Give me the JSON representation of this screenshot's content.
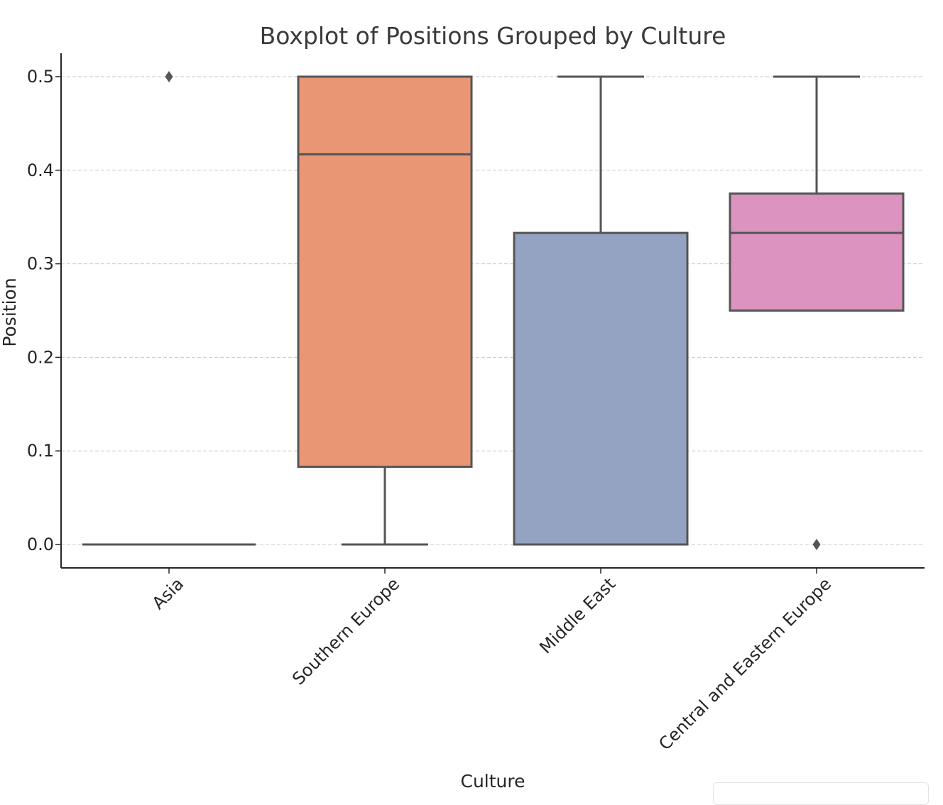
{
  "chart_data": {
    "type": "boxplot",
    "title": "Boxplot of Positions Grouped by Culture",
    "xlabel": "Culture",
    "ylabel": "Position",
    "ylim": [
      -0.025,
      0.525
    ],
    "yticks": [
      "0.0",
      "0.1",
      "0.2",
      "0.3",
      "0.4",
      "0.5"
    ],
    "ytick_values": [
      0.0,
      0.1,
      0.2,
      0.3,
      0.4,
      0.5
    ],
    "grid": "horizontal dashed",
    "categories": [
      "Asia",
      "Southern Europe",
      "Middle East",
      "Central and Eastern Europe"
    ],
    "boxes": [
      {
        "category": "Asia",
        "whisker_low": 0.0,
        "q1": 0.0,
        "median": 0.0,
        "q3": 0.0,
        "whisker_high": 0.0,
        "outliers": [
          0.5
        ],
        "color": "#66c2a5"
      },
      {
        "category": "Southern Europe",
        "whisker_low": 0.0,
        "q1": 0.083,
        "median": 0.417,
        "q3": 0.5,
        "whisker_high": 0.5,
        "outliers": [],
        "color": "#e89674"
      },
      {
        "category": "Middle East",
        "whisker_low": 0.0,
        "q1": 0.0,
        "median": 0.0,
        "q3": 0.333,
        "whisker_high": 0.5,
        "outliers": [],
        "color": "#94a3c2"
      },
      {
        "category": "Central and Eastern Europe",
        "whisker_low": 0.25,
        "q1": 0.25,
        "median": 0.333,
        "q3": 0.375,
        "whisker_high": 0.5,
        "outliers": [
          0.0
        ],
        "color": "#dc93bf"
      }
    ]
  }
}
